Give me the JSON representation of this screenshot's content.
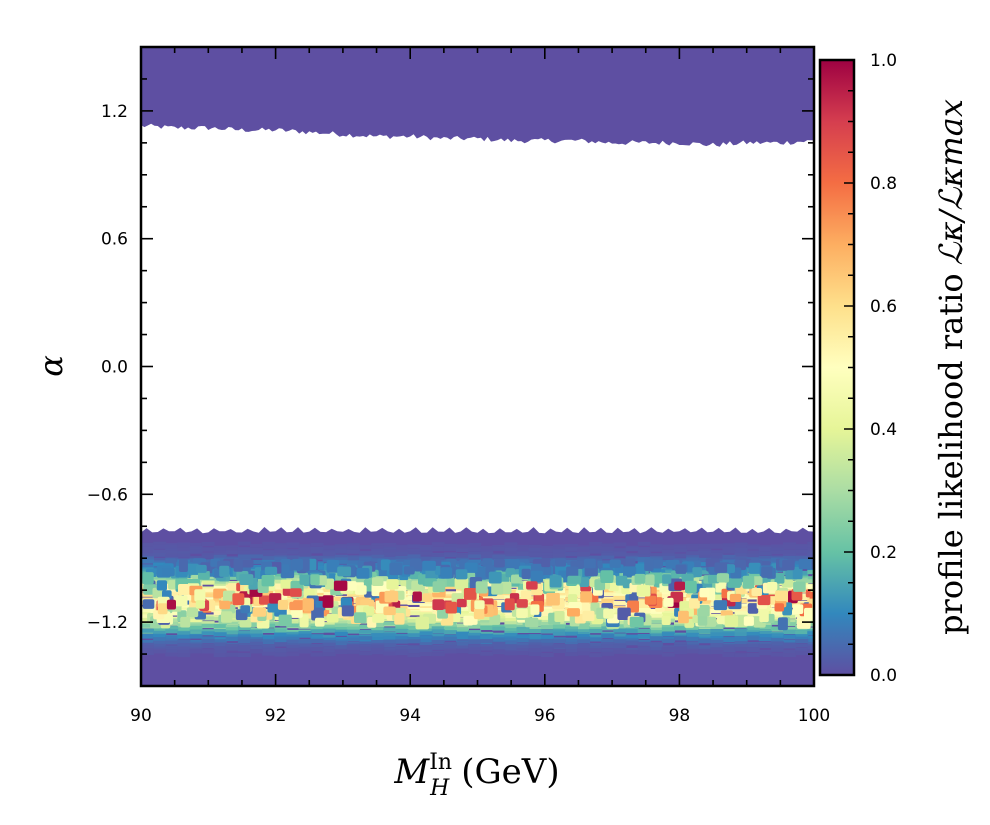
{
  "chart_data": {
    "type": "scatter",
    "subtype": "voronoi-density-scatter",
    "title": "",
    "xlabel": {
      "main": "M",
      "superscript": "In",
      "subscript": "H",
      "unit": "(GeV)"
    },
    "ylabel": "α",
    "xlim": [
      90,
      100
    ],
    "ylim": [
      -1.5,
      1.5
    ],
    "x_ticks": [
      90,
      92,
      94,
      96,
      98,
      100
    ],
    "x_tick_labels": [
      "90",
      "92",
      "94",
      "96",
      "98",
      "100"
    ],
    "x_minor_step": 0.5,
    "y_ticks": [
      -1.2,
      -0.6,
      0.0,
      0.6,
      1.2
    ],
    "y_tick_labels": [
      "−1.2",
      "−0.6",
      "0.0",
      "0.6",
      "1.2"
    ],
    "y_minor_step": 0.15,
    "grid": false,
    "regions": [
      {
        "name": "upper band",
        "x_range": [
          90,
          100
        ],
        "alpha_min_profile": [
          {
            "x": 90.0,
            "y": 1.13
          },
          {
            "x": 90.5,
            "y": 1.12
          },
          {
            "x": 91.0,
            "y": 1.12
          },
          {
            "x": 91.5,
            "y": 1.11
          },
          {
            "x": 92.0,
            "y": 1.11
          },
          {
            "x": 92.5,
            "y": 1.1
          },
          {
            "x": 93.0,
            "y": 1.09
          },
          {
            "x": 93.5,
            "y": 1.08
          },
          {
            "x": 94.0,
            "y": 1.08
          },
          {
            "x": 94.5,
            "y": 1.07
          },
          {
            "x": 95.0,
            "y": 1.07
          },
          {
            "x": 95.5,
            "y": 1.06
          },
          {
            "x": 96.0,
            "y": 1.06
          },
          {
            "x": 96.5,
            "y": 1.06
          },
          {
            "x": 97.0,
            "y": 1.05
          },
          {
            "x": 97.5,
            "y": 1.05
          },
          {
            "x": 98.0,
            "y": 1.05
          },
          {
            "x": 98.5,
            "y": 1.04
          },
          {
            "x": 99.0,
            "y": 1.05
          },
          {
            "x": 99.5,
            "y": 1.05
          },
          {
            "x": 100.0,
            "y": 1.06
          }
        ],
        "alpha_max": 1.5,
        "likelihood_ratio": 0.0
      },
      {
        "name": "lower band",
        "x_range": [
          90,
          100
        ],
        "alpha_max": -0.77,
        "alpha_min": -1.5,
        "likelihood_profile_vs_alpha": [
          {
            "alpha": -0.77,
            "ratio": 0.0
          },
          {
            "alpha": -0.88,
            "ratio": 0.02
          },
          {
            "alpha": -0.95,
            "ratio": 0.12
          },
          {
            "alpha": -1.0,
            "ratio": 0.3
          },
          {
            "alpha": -1.04,
            "ratio": 0.6
          },
          {
            "alpha": -1.08,
            "ratio": 0.75
          },
          {
            "alpha": -1.12,
            "ratio": 0.55
          },
          {
            "alpha": -1.16,
            "ratio": 0.45
          },
          {
            "alpha": -1.2,
            "ratio": 0.28
          },
          {
            "alpha": -1.25,
            "ratio": 0.12
          },
          {
            "alpha": -1.3,
            "ratio": 0.03
          },
          {
            "alpha": -1.36,
            "ratio": 0.0
          }
        ],
        "scattered_peak_alpha": -1.06,
        "max_ratio": 1.0
      }
    ],
    "colorbar": {
      "label_text": "profile likelihood ratio",
      "label_math": "ℒκ/ℒκmax",
      "colormap": "Spectral_r",
      "range": [
        0.0,
        1.0
      ],
      "ticks": [
        0.0,
        0.2,
        0.4,
        0.6,
        0.8,
        1.0
      ],
      "tick_labels": [
        "0.0",
        "0.2",
        "0.4",
        "0.6",
        "0.8",
        "1.0"
      ],
      "stops": [
        "#5e4fa2",
        "#3288bd",
        "#66c2a5",
        "#abdda4",
        "#e6f598",
        "#ffffbf",
        "#fee08b",
        "#fdae61",
        "#f46d43",
        "#d53e4f",
        "#9e0142"
      ]
    }
  }
}
